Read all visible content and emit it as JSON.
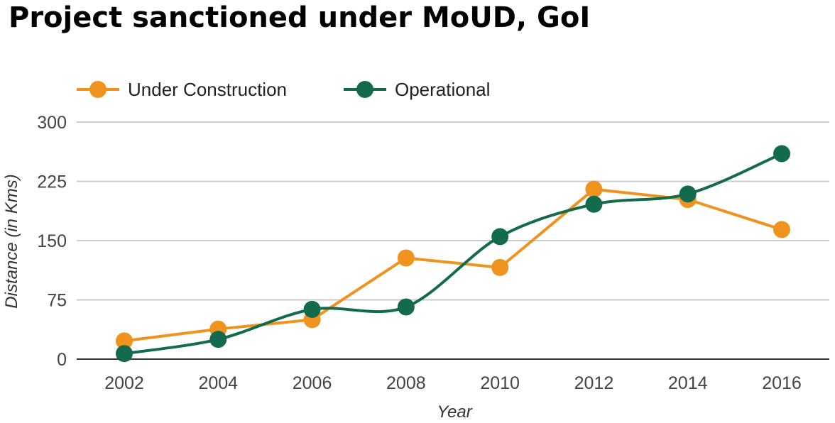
{
  "chart_data": {
    "type": "line",
    "title": "Project sanctioned under MoUD, GoI",
    "xlabel": "Year",
    "ylabel": "Distance (in Kms)",
    "x": [
      2002,
      2004,
      2006,
      2008,
      2010,
      2012,
      2014,
      2016
    ],
    "x_tick_labels": [
      "2002",
      "2004",
      "2006",
      "2008",
      "2010",
      "2012",
      "2014",
      "2016"
    ],
    "ylim": [
      0,
      300
    ],
    "y_ticks": [
      0,
      75,
      150,
      225,
      300
    ],
    "y_tick_labels": [
      "0",
      "75",
      "150",
      "225",
      "300"
    ],
    "grid": true,
    "legend": "top-left",
    "series": [
      {
        "name": "Under Construction",
        "color": "#f0921e",
        "smooth": false,
        "values": [
          23,
          38,
          50,
          128,
          116,
          215,
          202,
          164
        ]
      },
      {
        "name": "Operational",
        "color": "#136a4c",
        "smooth": true,
        "values": [
          7,
          25,
          63,
          66,
          155,
          196,
          209,
          260
        ]
      }
    ]
  }
}
